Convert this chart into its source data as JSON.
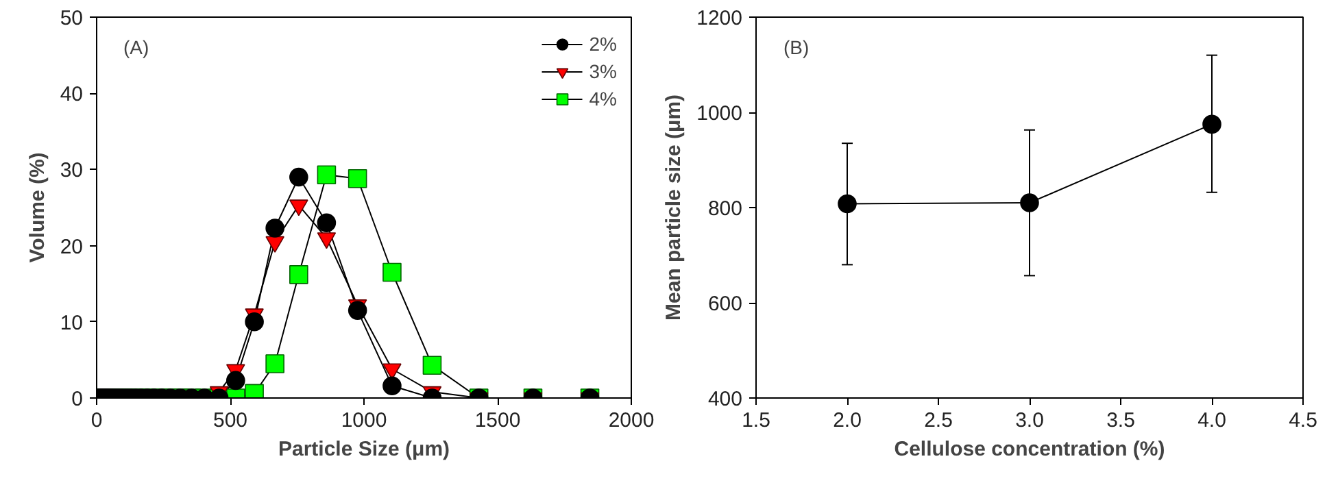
{
  "chart_data": [
    {
      "type": "line",
      "xlabel": "Particle Size (μm)",
      "ylabel": "Volume (%)",
      "annotations": [
        "(A)"
      ],
      "x": [
        10,
        11.6,
        13,
        15,
        17,
        19,
        22,
        25,
        28,
        32,
        36,
        41,
        47,
        53,
        60,
        68,
        78,
        88,
        100,
        114,
        129,
        146,
        166,
        189,
        214,
        243,
        276,
        313,
        355,
        403,
        458,
        520,
        590,
        667,
        756,
        860,
        976,
        1105,
        1255,
        1430,
        1632,
        1845
      ],
      "series": [
        {
          "name": "2%",
          "color": "#000000",
          "marker": "circle",
          "values": [
            0,
            0,
            0,
            0,
            0,
            0,
            0,
            0,
            0,
            0,
            0,
            0,
            0,
            0,
            0,
            0,
            0,
            0,
            0,
            0,
            0,
            0,
            0,
            0,
            0,
            0,
            0,
            0,
            0,
            0,
            0,
            2.3,
            10,
            22.3,
            29,
            23,
            11.5,
            1.6,
            0,
            0,
            0,
            0
          ]
        },
        {
          "name": "3%",
          "color": "#ff0000",
          "marker": "triangle",
          "values": [
            0,
            0,
            0,
            0,
            0,
            0,
            0,
            0,
            0,
            0,
            0,
            0,
            0,
            0,
            0,
            0,
            0,
            0,
            0,
            0,
            0,
            0,
            0,
            0,
            0,
            0,
            0,
            0,
            0,
            0,
            0.8,
            3.7,
            11,
            20.5,
            25.3,
            21,
            12.2,
            3.8,
            0.8,
            0,
            0,
            0
          ]
        },
        {
          "name": "4%",
          "color": "#00ff00",
          "marker": "square",
          "values": [
            0,
            0,
            0,
            0,
            0,
            0,
            0,
            0,
            0,
            0,
            0,
            0,
            0,
            0,
            0,
            0,
            0,
            0,
            0,
            0,
            0,
            0,
            0,
            0,
            0,
            0,
            0,
            0,
            0,
            0,
            0,
            0,
            0.6,
            4.5,
            16.2,
            29.3,
            28.8,
            16.5,
            4.3,
            0,
            0,
            0
          ]
        }
      ],
      "xlim": [
        0,
        2000
      ],
      "xticks": [
        0,
        500,
        1000,
        1500,
        2000
      ],
      "ylim": [
        0,
        50
      ],
      "yticks": [
        0,
        10,
        20,
        30,
        40,
        50
      ],
      "grid": false,
      "legend": "top right",
      "line_style": "solid"
    },
    {
      "type": "line",
      "xlabel": "Cellulose concentration (%)",
      "ylabel": "Mean particle size (μm)",
      "annotations": [
        "(B)"
      ],
      "x": [
        2.0,
        3.0,
        4.0
      ],
      "series": [
        {
          "color": "#000000",
          "marker": "circle",
          "values": [
            808,
            810,
            975
          ],
          "errors": [
            [
              680,
              935
            ],
            [
              657,
              963
            ],
            [
              832,
              1120
            ]
          ]
        }
      ],
      "xlim": [
        1.5,
        4.5
      ],
      "xticks": [
        1.5,
        {
          "value": 2,
          "label": "2.0"
        },
        2.5,
        {
          "value": 3,
          "label": "3.0"
        },
        3.5,
        {
          "value": 4,
          "label": "4.0"
        },
        4.5
      ],
      "ylim": [
        400,
        1200
      ],
      "yticks": [
        400,
        600,
        800,
        1000,
        1200
      ],
      "grid": false,
      "legend": false,
      "line_style": "solid"
    }
  ]
}
